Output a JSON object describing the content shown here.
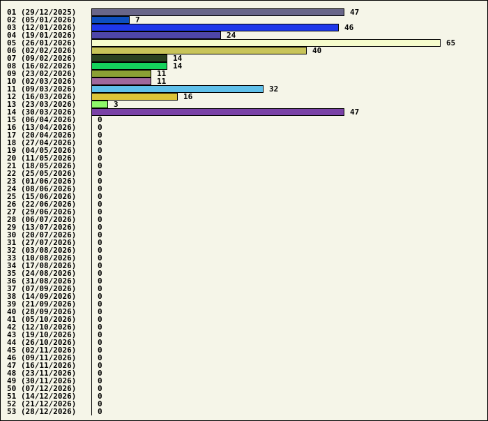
{
  "chart_data": {
    "type": "bar",
    "orientation": "horizontal",
    "title": "",
    "xlabel": "",
    "ylabel": "",
    "grid": false,
    "legend": "none",
    "xlim": [
      0,
      65
    ],
    "categories": [
      "01 (29/12/2025)",
      "02 (05/01/2026)",
      "03 (12/01/2026)",
      "04 (19/01/2026)",
      "05 (26/01/2026)",
      "06 (02/02/2026)",
      "07 (09/02/2026)",
      "08 (16/02/2026)",
      "09 (23/02/2026)",
      "10 (02/03/2026)",
      "11 (09/03/2026)",
      "12 (16/03/2026)",
      "13 (23/03/2026)",
      "14 (30/03/2026)",
      "15 (06/04/2026)",
      "16 (13/04/2026)",
      "17 (20/04/2026)",
      "18 (27/04/2026)",
      "19 (04/05/2026)",
      "20 (11/05/2026)",
      "21 (18/05/2026)",
      "22 (25/05/2026)",
      "23 (01/06/2026)",
      "24 (08/06/2026)",
      "25 (15/06/2026)",
      "26 (22/06/2026)",
      "27 (29/06/2026)",
      "28 (06/07/2026)",
      "29 (13/07/2026)",
      "30 (20/07/2026)",
      "31 (27/07/2026)",
      "32 (03/08/2026)",
      "33 (10/08/2026)",
      "34 (17/08/2026)",
      "35 (24/08/2026)",
      "36 (31/08/2026)",
      "37 (07/09/2026)",
      "38 (14/09/2026)",
      "39 (21/09/2026)",
      "40 (28/09/2026)",
      "41 (05/10/2026)",
      "42 (12/10/2026)",
      "43 (19/10/2026)",
      "44 (26/10/2026)",
      "45 (02/11/2026)",
      "46 (09/11/2026)",
      "47 (16/11/2026)",
      "48 (23/11/2026)",
      "49 (30/11/2026)",
      "50 (07/12/2026)",
      "51 (14/12/2026)",
      "52 (21/12/2026)",
      "53 (28/12/2026)"
    ],
    "values": [
      47,
      7,
      46,
      24,
      65,
      40,
      14,
      14,
      11,
      11,
      32,
      16,
      3,
      47,
      0,
      0,
      0,
      0,
      0,
      0,
      0,
      0,
      0,
      0,
      0,
      0,
      0,
      0,
      0,
      0,
      0,
      0,
      0,
      0,
      0,
      0,
      0,
      0,
      0,
      0,
      0,
      0,
      0,
      0,
      0,
      0,
      0,
      0,
      0,
      0,
      0,
      0,
      0
    ],
    "colors": [
      "#696689",
      "#0d4fbf",
      "#1f38ea",
      "#4e46a8",
      "#f6fccc",
      "#c8c459",
      "#2b4220",
      "#14d25c",
      "#8ba035",
      "#a0689c",
      "#60c0ea",
      "#ddc438",
      "#8df76a",
      "#7a42a7"
    ],
    "background": "#f5f5e8"
  }
}
